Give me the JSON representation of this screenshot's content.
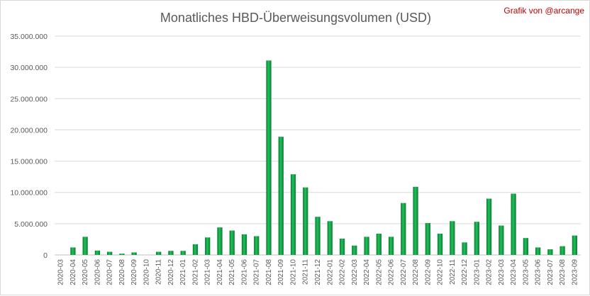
{
  "chart_data": {
    "type": "bar",
    "title": "Monatliches HBD-Überweisungsvolumen (USD)",
    "credit": "Grafik von @arcange",
    "xlabel": "",
    "ylabel": "",
    "ylim": [
      0,
      35000000
    ],
    "yticks": [
      0,
      5000000,
      10000000,
      15000000,
      20000000,
      25000000,
      30000000,
      35000000
    ],
    "ytick_labels": [
      "0",
      "5.000.000",
      "10.000.000",
      "15.000.000",
      "20.000.000",
      "25.000.000",
      "30.000.000",
      "35.000.000"
    ],
    "grid": true,
    "legend": "none",
    "bar_color": "#00a03c",
    "categories": [
      "2020-03",
      "2020-04",
      "2020-05",
      "2020-06",
      "2020-07",
      "2020-08",
      "2020-09",
      "2020-10",
      "2020-11",
      "2020-12",
      "2021-01",
      "2021-02",
      "2021-03",
      "2021-04",
      "2021-05",
      "2021-06",
      "2021-07",
      "2021-08",
      "2021-09",
      "2021-10",
      "2021-11",
      "2021-12",
      "2022-01",
      "2022-02",
      "2022-03",
      "2022-04",
      "2022-05",
      "2022-06",
      "2022-07",
      "2022-08",
      "2022-09",
      "2022-10",
      "2022-11",
      "2022-12",
      "2023-01",
      "2023-02",
      "2023-03",
      "2023-04",
      "2023-05",
      "2023-06",
      "2023-07",
      "2023-08",
      "2023-09"
    ],
    "values": [
      0,
      1200000,
      2900000,
      700000,
      500000,
      200000,
      400000,
      0,
      500000,
      650000,
      650000,
      1700000,
      2800000,
      4400000,
      3900000,
      3300000,
      3000000,
      31100000,
      18900000,
      12900000,
      10800000,
      6100000,
      5400000,
      2600000,
      1500000,
      2900000,
      3400000,
      2900000,
      8300000,
      10900000,
      5100000,
      3400000,
      5400000,
      2000000,
      5300000,
      9000000,
      4700000,
      9800000,
      2700000,
      1200000,
      900000,
      1400000,
      3100000
    ]
  }
}
